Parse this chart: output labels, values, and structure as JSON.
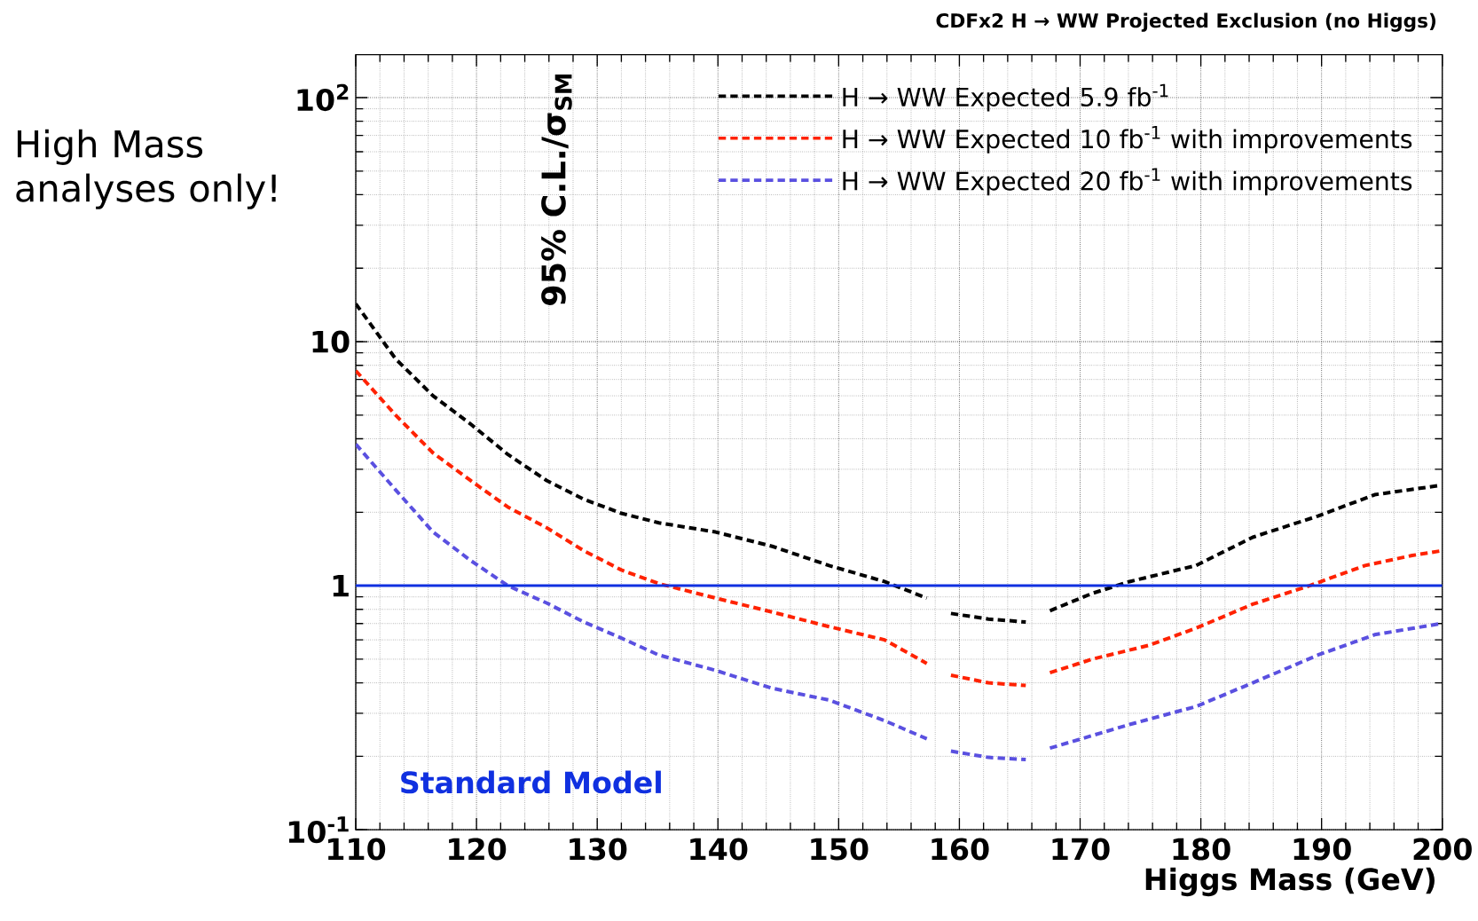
{
  "chart_data": {
    "type": "line",
    "title": "CDFx2 H → WW Projected Exclusion (no Higgs)",
    "xlabel": "Higgs Mass (GeV)",
    "ylabel": "95% C.L./σ$_{SM}$",
    "annotations": [
      "High Mass analyses only!"
    ],
    "log": "y",
    "grid": true,
    "legend": "top right",
    "line_style": "dashed",
    "xlim": [
      110,
      200
    ],
    "ylim": [
      0.1,
      150
    ],
    "xticks": [
      110,
      120,
      130,
      140,
      150,
      160,
      170,
      180,
      190,
      200
    ],
    "yticks": [
      {
        "value": 0.1,
        "label": "10$^{-1}$"
      },
      1,
      10,
      {
        "value": 100,
        "label": "10$^{2}$"
      }
    ],
    "ref_lines": [
      {
        "axis": "y",
        "value": 1,
        "label": "Standard Model",
        "color": "#1030e0"
      }
    ],
    "series": [
      {
        "name": "H → WW  Expected 5.9 fb$^{-1}$",
        "color": "#000000",
        "x": [
          110,
          113.3,
          116.4,
          119.5,
          122.6,
          125.8,
          128.9,
          132,
          135.1,
          139.8,
          144.5,
          149.2,
          153.8,
          157.3,
          158.3,
          159.3,
          162.4,
          165.5,
          166.5,
          167.5,
          171,
          174.1,
          179.6,
          184.3,
          189.7,
          194.4,
          199.9
        ],
        "values": [
          14.3,
          8.5,
          6.0,
          4.6,
          3.45,
          2.7,
          2.26,
          1.98,
          1.81,
          1.66,
          1.45,
          1.21,
          1.04,
          0.89,
          null,
          0.77,
          0.73,
          0.71,
          null,
          0.79,
          0.93,
          1.04,
          1.21,
          1.58,
          1.93,
          2.36,
          2.58
        ]
      },
      {
        "name": "H → WW  Expected 10 fb$^{-1}$ with improvements",
        "color": "#ff2200",
        "x": [
          110,
          113.3,
          116.4,
          119.5,
          122.6,
          125.8,
          128.9,
          132,
          135.1,
          139.8,
          144.5,
          149.2,
          153.8,
          157.3,
          158.3,
          159.3,
          162.4,
          165.5,
          166.5,
          167.5,
          171,
          175.7,
          179.6,
          184.3,
          189,
          193.6,
          197.5,
          199.9
        ],
        "values": [
          7.6,
          5.0,
          3.5,
          2.7,
          2.1,
          1.73,
          1.39,
          1.16,
          1.02,
          0.89,
          0.78,
          0.68,
          0.6,
          0.48,
          null,
          0.43,
          0.4,
          0.39,
          null,
          0.44,
          0.5,
          0.57,
          0.67,
          0.84,
          1.0,
          1.21,
          1.33,
          1.39
        ]
      },
      {
        "name": "H → WW  Expected 20 fb$^{-1}$ with improvements",
        "color": "#5a50e0",
        "x": [
          110,
          113.3,
          116.4,
          119.5,
          122.6,
          125.8,
          128.9,
          132,
          135.1,
          139.8,
          144.5,
          149.2,
          153.8,
          157.3,
          158.3,
          159.3,
          162.4,
          165.5,
          166.5,
          167.5,
          174.1,
          179.6,
          184.3,
          189.7,
          194.4,
          199.9
        ],
        "values": [
          3.8,
          2.47,
          1.66,
          1.27,
          1.0,
          0.85,
          0.71,
          0.61,
          0.52,
          0.45,
          0.38,
          0.34,
          0.28,
          0.236,
          null,
          0.21,
          0.198,
          0.194,
          null,
          0.216,
          0.27,
          0.32,
          0.4,
          0.52,
          0.63,
          0.7
        ]
      }
    ]
  }
}
